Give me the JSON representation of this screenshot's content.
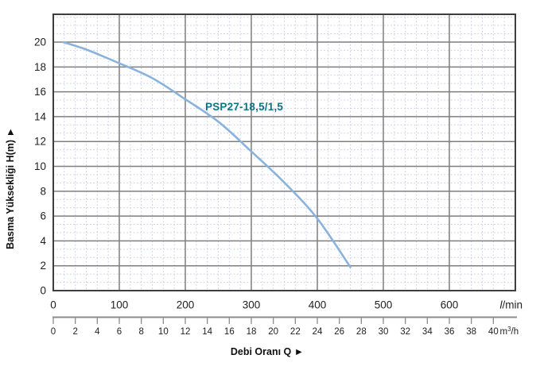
{
  "chart_data": {
    "type": "line",
    "title": "",
    "series": [
      {
        "name": "PSP27-18,5/1,5",
        "color": "#8ab3dc",
        "label_color": "#0e7383",
        "points_lmin_h": [
          [
            15,
            20
          ],
          [
            50,
            19.4
          ],
          [
            100,
            18.3
          ],
          [
            150,
            17.1
          ],
          [
            200,
            15.4
          ],
          [
            250,
            13.6
          ],
          [
            300,
            11.2
          ],
          [
            350,
            8.7
          ],
          [
            400,
            5.8
          ],
          [
            450,
            1.9
          ]
        ]
      }
    ],
    "x_axis": {
      "title": "Debi Oranı Q ►",
      "primary": {
        "unit": "l/min",
        "ticks": [
          0,
          100,
          200,
          300,
          400,
          500,
          600
        ],
        "range": [
          0,
          700
        ]
      },
      "secondary": {
        "unit": "m³/h",
        "ticks": [
          0,
          2,
          4,
          6,
          8,
          10,
          12,
          14,
          16,
          18,
          20,
          22,
          24,
          26,
          28,
          30,
          32,
          34,
          36,
          38,
          40
        ],
        "range": [
          0,
          42
        ]
      }
    },
    "y_axis": {
      "title": "Basma Yüksekliği H(m) ►",
      "ticks": [
        0,
        2,
        4,
        6,
        8,
        10,
        12,
        14,
        16,
        18,
        20
      ],
      "range": [
        0,
        22.24
      ]
    },
    "grid": {
      "minor_x_step": 16.667,
      "minor_y_step": 0.667,
      "minor_color": "#c8cce4",
      "major_color": "#7f7f7f",
      "border_color": "#3e3e3e"
    },
    "colors": {
      "text": "#1f1f1f",
      "ruler": "#8c8c8c",
      "background": "#ffffff"
    }
  }
}
